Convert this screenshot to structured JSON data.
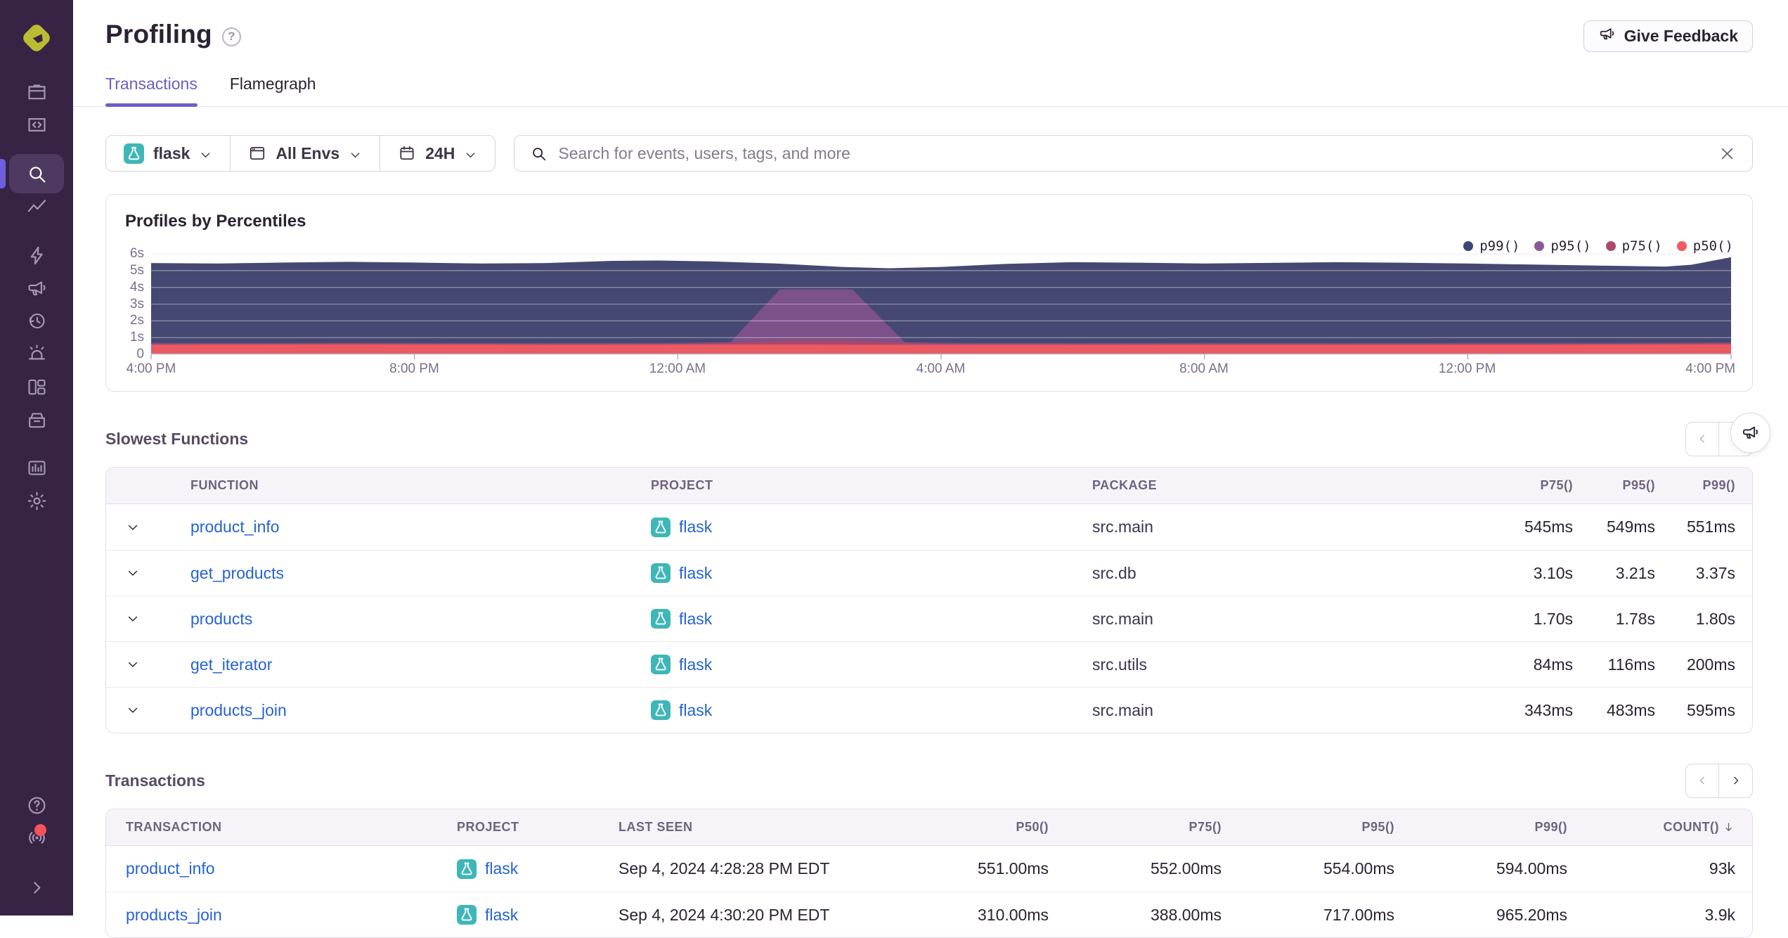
{
  "header": {
    "title": "Profiling",
    "give_feedback_label": "Give Feedback"
  },
  "tabs": [
    {
      "label": "Transactions",
      "active": true
    },
    {
      "label": "Flamegraph",
      "active": false
    }
  ],
  "filters": {
    "project_label": "flask",
    "env_label": "All Envs",
    "period_label": "24H",
    "search_placeholder": "Search for events, users, tags, and more",
    "search_value": ""
  },
  "sidebar": {
    "items": [
      {
        "icon": "issues-icon"
      },
      {
        "icon": "projects-icon"
      },
      {
        "icon": "explore-search-icon",
        "active": true
      },
      {
        "icon": "traces-icon"
      },
      {
        "icon": "performance-icon"
      },
      {
        "icon": "feedback-icon"
      },
      {
        "icon": "replays-icon"
      },
      {
        "icon": "alerts-icon"
      },
      {
        "icon": "dashboards-icon"
      },
      {
        "icon": "releases-icon"
      },
      {
        "icon": "stats-icon"
      },
      {
        "icon": "settings-icon"
      }
    ],
    "bottom_items": [
      {
        "icon": "help-icon"
      },
      {
        "icon": "whats-new-icon",
        "badge": true
      },
      {
        "icon": "collapse-icon"
      }
    ]
  },
  "chart_data": {
    "type": "area",
    "title": "Profiles by Percentiles",
    "ylim": [
      0,
      6
    ],
    "y_tick_labels": [
      "0",
      "1s",
      "2s",
      "3s",
      "4s",
      "5s",
      "6s"
    ],
    "x_range_hours": [
      0,
      24
    ],
    "x_tick_hours": [
      0,
      4,
      8,
      12,
      16,
      20,
      24
    ],
    "x_tick_labels": [
      "4:00 PM",
      "8:00 PM",
      "12:00 AM",
      "4:00 AM",
      "8:00 AM",
      "12:00 PM",
      "4:00 PM"
    ],
    "legend_position": "top-right",
    "grid": true,
    "series": [
      {
        "name": "p99()",
        "color": "#454872",
        "dot_color": "#3e4476",
        "points": [
          [
            0,
            5.45
          ],
          [
            1,
            5.42
          ],
          [
            2,
            5.48
          ],
          [
            3,
            5.52
          ],
          [
            4,
            5.48
          ],
          [
            5,
            5.42
          ],
          [
            6,
            5.45
          ],
          [
            7,
            5.58
          ],
          [
            7.7,
            5.6
          ],
          [
            8.5,
            5.55
          ],
          [
            9.5,
            5.42
          ],
          [
            10.5,
            5.22
          ],
          [
            11.2,
            5.14
          ],
          [
            12,
            5.22
          ],
          [
            13,
            5.4
          ],
          [
            14,
            5.5
          ],
          [
            15,
            5.47
          ],
          [
            16,
            5.42
          ],
          [
            17,
            5.46
          ],
          [
            18,
            5.5
          ],
          [
            19,
            5.47
          ],
          [
            20,
            5.42
          ],
          [
            21,
            5.36
          ],
          [
            22,
            5.3
          ],
          [
            23,
            5.24
          ],
          [
            23.4,
            5.35
          ],
          [
            24,
            5.8
          ]
        ]
      },
      {
        "name": "p95()",
        "color": "#7d5189",
        "dot_color": "#8b5a96",
        "points": [
          [
            0,
            0.68
          ],
          [
            2,
            0.67
          ],
          [
            4,
            0.68
          ],
          [
            6,
            0.67
          ],
          [
            8,
            0.68
          ],
          [
            8.8,
            0.72
          ],
          [
            9.55,
            3.88
          ],
          [
            10.65,
            3.88
          ],
          [
            11.45,
            0.72
          ],
          [
            12,
            0.68
          ],
          [
            14,
            0.67
          ],
          [
            16,
            0.68
          ],
          [
            18,
            0.67
          ],
          [
            20,
            0.68
          ],
          [
            22,
            0.68
          ],
          [
            24,
            0.7
          ]
        ]
      },
      {
        "name": "p75()",
        "color": "#a8486f",
        "dot_color": "#aa496e",
        "points": [
          [
            0,
            0.62
          ],
          [
            2,
            0.64
          ],
          [
            3,
            0.67
          ],
          [
            4,
            0.64
          ],
          [
            6,
            0.62
          ],
          [
            8,
            0.63
          ],
          [
            9,
            0.72
          ],
          [
            9.6,
            0.82
          ],
          [
            10.6,
            0.82
          ],
          [
            11.5,
            0.7
          ],
          [
            12,
            0.63
          ],
          [
            14,
            0.61
          ],
          [
            16,
            0.62
          ],
          [
            18,
            0.62
          ],
          [
            20,
            0.63
          ],
          [
            22,
            0.63
          ],
          [
            23,
            0.65
          ],
          [
            24,
            0.67
          ]
        ]
      },
      {
        "name": "p50()",
        "color": "#ea5a61",
        "dot_color": "#f05a61",
        "points": [
          [
            0,
            0.58
          ],
          [
            3,
            0.6
          ],
          [
            6,
            0.58
          ],
          [
            9,
            0.59
          ],
          [
            12,
            0.57
          ],
          [
            15,
            0.58
          ],
          [
            18,
            0.58
          ],
          [
            21,
            0.58
          ],
          [
            24,
            0.6
          ]
        ]
      }
    ]
  },
  "slowest_functions": {
    "title": "Slowest Functions",
    "columns": [
      "FUNCTION",
      "PROJECT",
      "PACKAGE",
      "P75()",
      "P95()",
      "P99()"
    ],
    "rows": [
      {
        "function": "product_info",
        "project": "flask",
        "package": "src.main",
        "p75": "545ms",
        "p95": "549ms",
        "p99": "551ms"
      },
      {
        "function": "get_products",
        "project": "flask",
        "package": "src.db",
        "p75": "3.10s",
        "p95": "3.21s",
        "p99": "3.37s"
      },
      {
        "function": "products",
        "project": "flask",
        "package": "src.main",
        "p75": "1.70s",
        "p95": "1.78s",
        "p99": "1.80s"
      },
      {
        "function": "get_iterator",
        "project": "flask",
        "package": "src.utils",
        "p75": "84ms",
        "p95": "116ms",
        "p99": "200ms"
      },
      {
        "function": "products_join",
        "project": "flask",
        "package": "src.main",
        "p75": "343ms",
        "p95": "483ms",
        "p99": "595ms"
      }
    ]
  },
  "transactions": {
    "title": "Transactions",
    "columns": [
      "TRANSACTION",
      "PROJECT",
      "LAST SEEN",
      "P50()",
      "P75()",
      "P95()",
      "P99()",
      "COUNT()"
    ],
    "sorted_column": "COUNT()",
    "sort_direction": "desc",
    "rows": [
      {
        "transaction": "product_info",
        "project": "flask",
        "last_seen": "Sep 4, 2024 4:28:28 PM EDT",
        "p50": "551.00ms",
        "p75": "552.00ms",
        "p95": "554.00ms",
        "p99": "594.00ms",
        "count": "93k"
      },
      {
        "transaction": "products_join",
        "project": "flask",
        "last_seen": "Sep 4, 2024 4:30:20 PM EDT",
        "p50": "310.00ms",
        "p75": "388.00ms",
        "p95": "717.00ms",
        "p99": "965.20ms",
        "count": "3.9k"
      }
    ]
  },
  "colors": {
    "accent_purple": "#6c5fc7",
    "sidebar_bg": "#372444",
    "link_blue": "#2562d4",
    "project_icon_teal": "#3fb6b8",
    "notification_red": "#f55459"
  }
}
